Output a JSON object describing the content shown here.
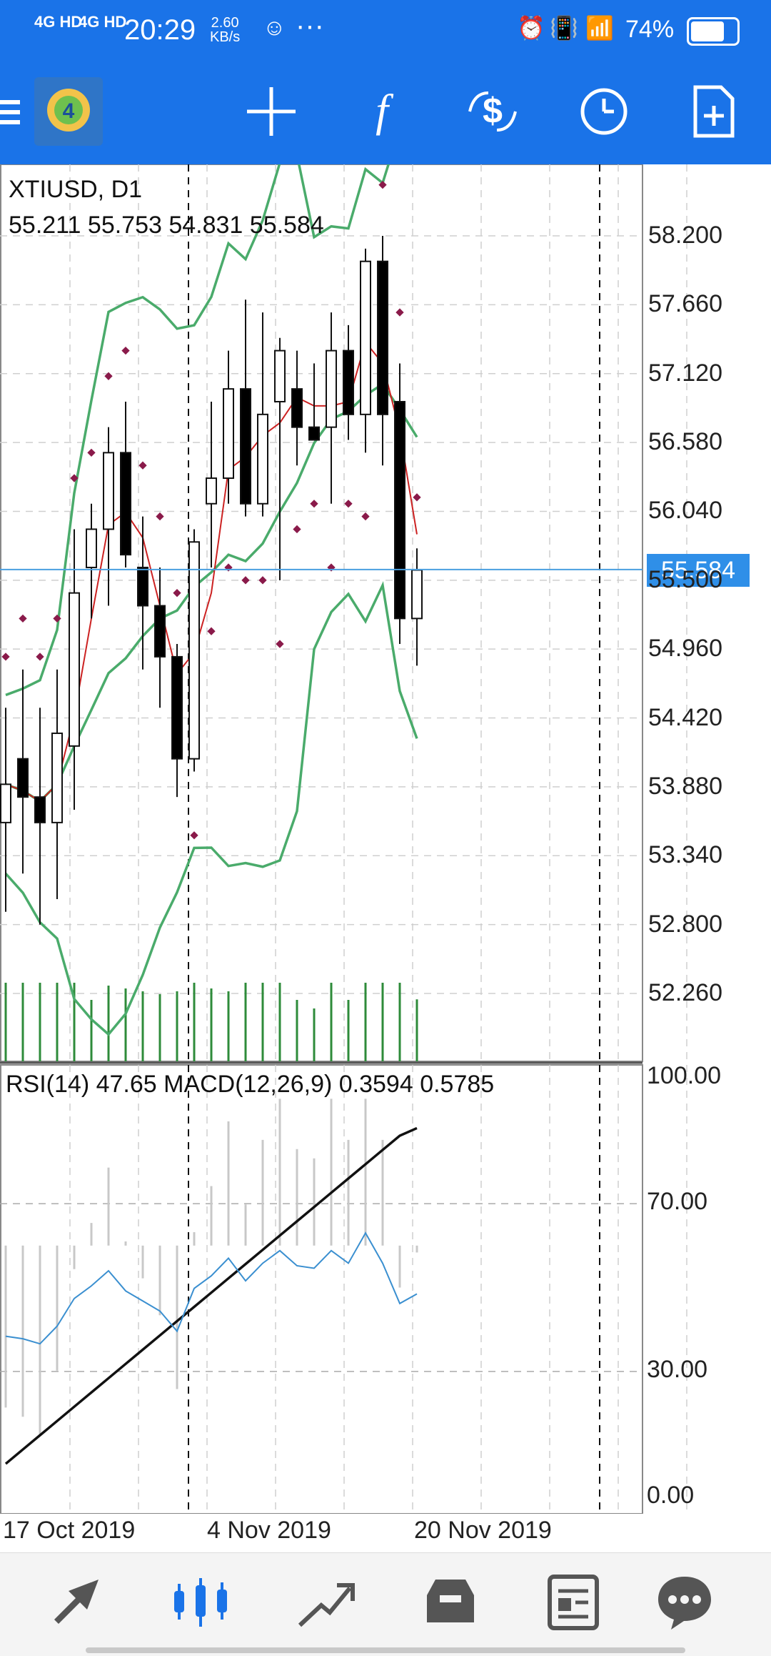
{
  "status_bar": {
    "signal1": "4G HD",
    "signal2": "4G HD",
    "time": "20:29",
    "speed_value": "2.60",
    "speed_unit": "KB/s",
    "more": "···",
    "battery": "74%"
  },
  "toolbar": {
    "icons": [
      "menu-icon",
      "crosshair-icon",
      "function-icon",
      "trade-icon",
      "clock-icon",
      "new-document-icon"
    ]
  },
  "chart": {
    "symbol": "XTIUSD, D1",
    "ohlc": "55.211 55.753 54.831 55.584",
    "current_price": "55.584",
    "price_axis": [
      "58.200",
      "57.660",
      "57.120",
      "56.580",
      "56.040",
      "55.500",
      "54.960",
      "54.420",
      "53.880",
      "53.340",
      "52.800",
      "52.260"
    ],
    "indicator_label": "RSI(14) 47.65 MACD(12,26,9) 0.3594 0.5785",
    "indicator_axis": [
      "100.00",
      "70.00",
      "30.00",
      "0.00"
    ],
    "time_labels": [
      "17 Oct 2019",
      "4 Nov 2019",
      "20 Nov 2019"
    ]
  },
  "chart_data": {
    "type": "candlestick",
    "title": "XTIUSD, D1",
    "ylim": [
      51.9,
      58.6
    ],
    "candles": [
      {
        "o": 53.6,
        "h": 54.5,
        "l": 52.9,
        "c": 53.9
      },
      {
        "o": 54.1,
        "h": 54.8,
        "l": 53.2,
        "c": 53.8
      },
      {
        "o": 53.8,
        "h": 54.5,
        "l": 52.8,
        "c": 53.6
      },
      {
        "o": 53.6,
        "h": 54.8,
        "l": 53.0,
        "c": 54.3
      },
      {
        "o": 54.2,
        "h": 55.9,
        "l": 53.7,
        "c": 55.4
      },
      {
        "o": 55.6,
        "h": 56.1,
        "l": 55.2,
        "c": 55.9
      },
      {
        "o": 55.9,
        "h": 56.7,
        "l": 55.3,
        "c": 56.5
      },
      {
        "o": 56.5,
        "h": 56.9,
        "l": 55.6,
        "c": 55.7
      },
      {
        "o": 55.6,
        "h": 56.0,
        "l": 54.8,
        "c": 55.3
      },
      {
        "o": 55.3,
        "h": 55.6,
        "l": 54.5,
        "c": 54.9
      },
      {
        "o": 54.9,
        "h": 55.0,
        "l": 53.8,
        "c": 54.1
      },
      {
        "o": 54.1,
        "h": 55.9,
        "l": 54.0,
        "c": 55.8
      },
      {
        "o": 56.1,
        "h": 56.9,
        "l": 55.6,
        "c": 56.3
      },
      {
        "o": 56.3,
        "h": 57.3,
        "l": 56.1,
        "c": 57.0
      },
      {
        "o": 57.0,
        "h": 57.7,
        "l": 56.0,
        "c": 56.1
      },
      {
        "o": 56.1,
        "h": 57.6,
        "l": 56.0,
        "c": 56.8
      },
      {
        "o": 56.9,
        "h": 57.4,
        "l": 55.5,
        "c": 57.3
      },
      {
        "o": 57.0,
        "h": 57.3,
        "l": 56.4,
        "c": 56.7
      },
      {
        "o": 56.7,
        "h": 57.2,
        "l": 56.6,
        "c": 56.6
      },
      {
        "o": 56.7,
        "h": 57.6,
        "l": 56.1,
        "c": 57.3
      },
      {
        "o": 57.3,
        "h": 57.5,
        "l": 56.6,
        "c": 56.8
      },
      {
        "o": 56.8,
        "h": 58.1,
        "l": 56.5,
        "c": 58.0
      },
      {
        "o": 58.0,
        "h": 58.2,
        "l": 56.4,
        "c": 56.8
      },
      {
        "o": 56.9,
        "h": 57.2,
        "l": 55.0,
        "c": 55.2
      },
      {
        "o": 55.2,
        "h": 55.75,
        "l": 54.83,
        "c": 55.58
      }
    ]
  },
  "bottom_nav": {
    "items": [
      "quotes-icon",
      "chart-icon",
      "trade-icon",
      "history-icon",
      "news-icon",
      "chat-icon"
    ],
    "active_color": "#1a73e8"
  }
}
